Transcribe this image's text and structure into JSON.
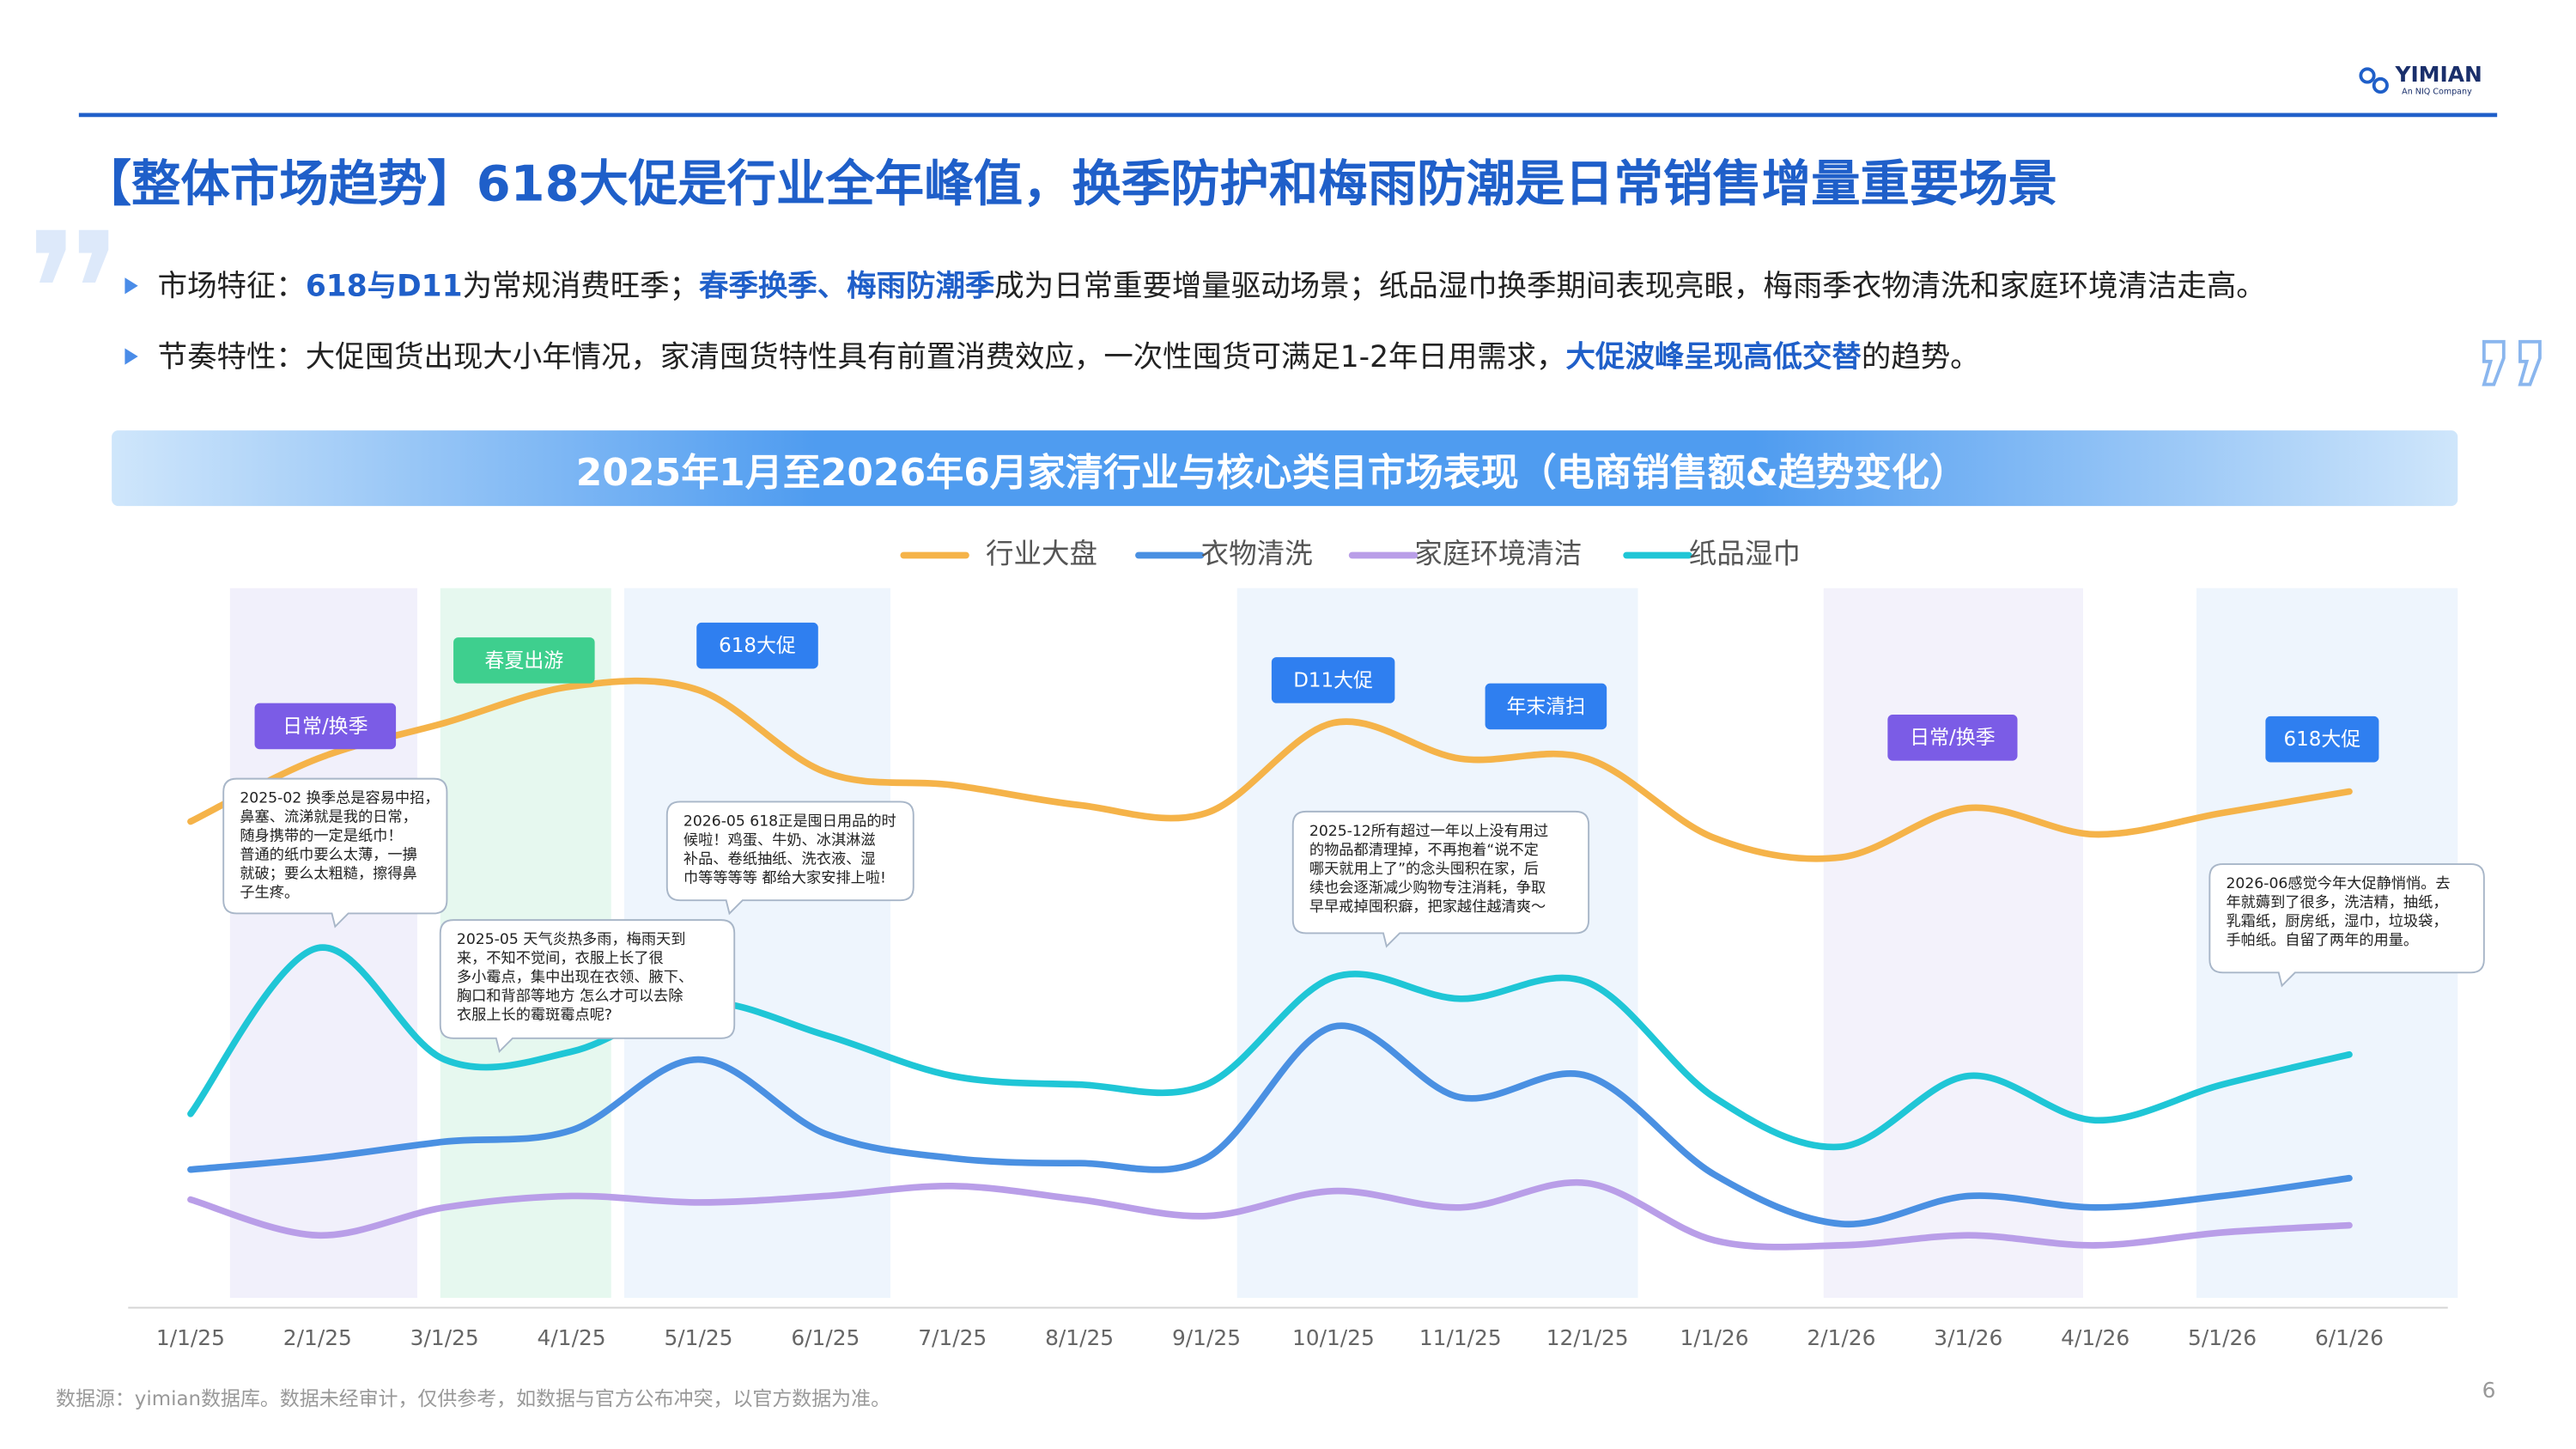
{
  "header": {
    "title": "【整体市场趋势】618大促是行业全年峰值，换季防护和梅雨防潮是日常销售增量重要场景",
    "bullets": [
      [
        "市场特征：",
        "618与D11",
        "为常规消费旺季；",
        "春季换季、梅雨防潮季",
        "成为日常重要增量驱动场景；纸品湿巾换季期间表现亮眼，梅雨季衣物清洗和家庭环境清洁走高。"
      ],
      [
        "节奏特性：大促囤货出现大小年情况，家清囤货特性具有前置消费效应，一次性囤货可满足1-2年日用需求，",
        "大促波峰呈现高低交替",
        "的趋势。"
      ]
    ]
  },
  "logo": {
    "name": "YIMIAN",
    "tagline": "An NIQ Company"
  },
  "chart_data": {
    "type": "line",
    "title": "2025年1月至2026年6月家清行业与核心类目市场表现（电商销售额&趋势变化）",
    "categories": [
      "1/1/25",
      "2/1/25",
      "3/1/25",
      "4/1/25",
      "5/1/25",
      "6/1/25",
      "7/1/25",
      "8/1/25",
      "9/1/25",
      "10/1/25",
      "11/1/25",
      "12/1/25",
      "1/1/26",
      "2/1/26",
      "3/1/26",
      "4/1/26",
      "5/1/26",
      "6/1/26"
    ],
    "ylim": [
      0,
      100
    ],
    "series": [
      {
        "name": "行业大盘",
        "color": "#f5b349",
        "values": [
          67.8,
          76.6,
          81.6,
          86.7,
          86.2,
          74.7,
          72.9,
          70.1,
          69.0,
          81.6,
          76.6,
          76.6,
          65.5,
          62.8,
          69.7,
          66.0,
          69.0,
          72.0
        ]
      },
      {
        "name": "衣物清洗",
        "color": "#4a90e2",
        "values": [
          19.1,
          20.7,
          23.0,
          24.6,
          34.5,
          24.1,
          20.7,
          20.0,
          20.7,
          39.1,
          29.2,
          32.2,
          18.4,
          11.5,
          15.4,
          13.8,
          15.4,
          17.9
        ]
      },
      {
        "name": "家庭环境清洁",
        "color": "#b99ee8",
        "values": [
          14.9,
          9.9,
          13.8,
          15.4,
          14.5,
          15.4,
          16.8,
          14.9,
          12.6,
          16.1,
          13.8,
          17.2,
          9.2,
          8.5,
          9.9,
          8.5,
          10.3,
          11.3
        ]
      },
      {
        "name": "纸品湿巾",
        "color": "#1fc6d6",
        "values": [
          26.9,
          50.1,
          34.5,
          35.6,
          42.5,
          37.9,
          32.2,
          31.0,
          31.0,
          46.0,
          43.0,
          45.3,
          29.2,
          22.3,
          32.2,
          26.0,
          31.0,
          35.2
        ]
      }
    ],
    "tags": [
      "日常/换季",
      "春夏出游",
      "618大促",
      "D11大促",
      "年末清扫",
      "日常/换季",
      "618大促"
    ],
    "comments": [
      [
        "2025-02 换季总是容易中招，",
        "鼻塞、流涕就是我的日常，",
        "随身携带的一定是纸巾！",
        "普通的纸巾要么太薄，一擤",
        "就破；要么太粗糙，擦得鼻",
        "子生疼。"
      ],
      [
        "2025-05 天气炎热多雨，梅雨天到",
        "来，不知不觉间，衣服上长了很",
        "多小霉点，集中出现在衣领、腋下、",
        "胸口和背部等地方 怎么才可以去除",
        "衣服上长的霉斑霉点呢?"
      ],
      [
        "2026-05 618正是囤日用品的时",
        "候啦！鸡蛋、牛奶、冰淇淋滋",
        "补品、卷纸抽纸、洗衣液、湿",
        "巾等等等等 都给大家安排上啦!"
      ],
      [
        "2025-12所有超过一年以上没有用过",
        "的物品都清理掉，不再抱着“说不定",
        "哪天就用上了”的念头囤积在家，后",
        "续也会逐渐减少购物专注消耗，争取",
        "早早戒掉囤积癖，把家越住越清爽～"
      ],
      [
        "2026-06感觉今年大促静悄悄。去",
        "年就薅到了很多，洗洁精，抽纸，",
        "乳霜纸，厨房纸，湿巾，垃圾袋，",
        "手帕纸。自留了两年的用量。"
      ]
    ]
  },
  "footer": {
    "source": "数据源：yimian数据库。数据未经审计，仅供参考，如数据与官方公布冲突，以官方数据为准。",
    "page": "6"
  }
}
